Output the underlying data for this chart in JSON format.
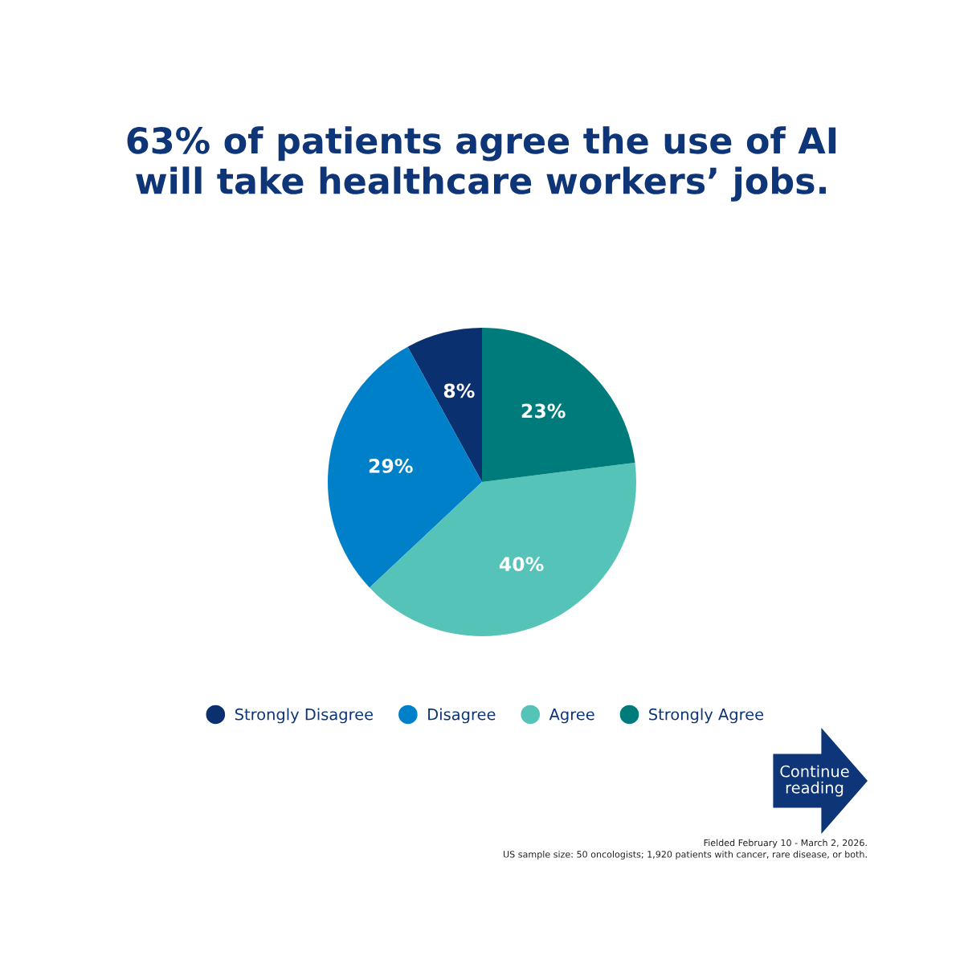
{
  "chart_data": {
    "type": "pie",
    "title": "63% of patients agree the use of AI\nwill take healthcare workers’ jobs.",
    "categories": [
      "Strongly Disagree",
      "Disagree",
      "Agree",
      "Strongly Agree"
    ],
    "values": [
      8,
      29,
      40,
      23
    ],
    "colors": [
      "#0b306f",
      "#0080c9",
      "#55c3b8",
      "#007b7b"
    ],
    "value_labels": [
      "8%",
      "29%",
      "40%",
      "23%"
    ],
    "legend": "bottom",
    "annotations": [
      "Continue\nreading",
      "Fielded February 10 - March 2, 2026.",
      "US sample size: 50 oncologists; 1,920 patients with cancer, rare disease, or both."
    ]
  }
}
